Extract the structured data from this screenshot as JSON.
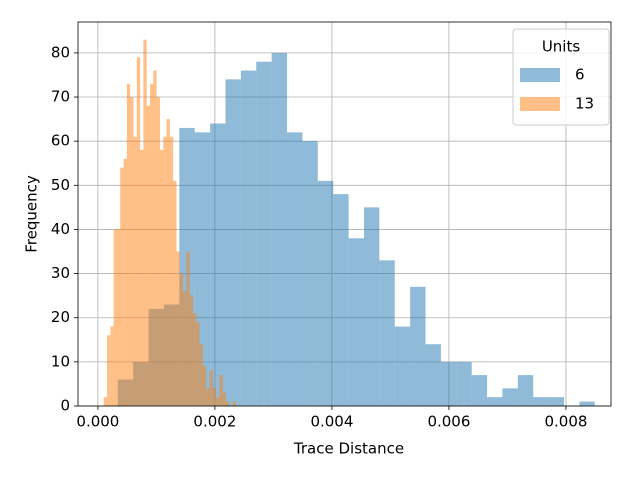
{
  "chart_data": {
    "type": "histogram",
    "xlabel": "Trace Distance",
    "ylabel": "Frequency",
    "xlim": [
      -0.00034,
      0.00877
    ],
    "ylim": [
      0,
      87
    ],
    "xticks": [
      {
        "value": 0,
        "label": "0.000"
      },
      0.002,
      0.004,
      0.006,
      0.008
    ],
    "yticks": [
      0,
      10,
      20,
      30,
      40,
      50,
      60,
      70,
      80
    ],
    "grid": true,
    "legend_title": "Units",
    "legend_loc": "upper right",
    "alpha": 0.5,
    "series": [
      {
        "name": "6",
        "color": "#1f77b4",
        "bins": [
          0.00034,
          0.000603,
          0.000866,
          0.001129,
          0.001392,
          0.001655,
          0.001918,
          0.002181,
          0.002444,
          0.002707,
          0.00297,
          0.003233,
          0.003496,
          0.003759,
          0.004022,
          0.004285,
          0.004548,
          0.004811,
          0.005074,
          0.005337,
          0.0056,
          0.005863,
          0.006126,
          0.006389,
          0.006652,
          0.006915,
          0.007178,
          0.007441,
          0.007704,
          0.007967,
          0.00823,
          0.008493
        ],
        "values": [
          6,
          10,
          22,
          23,
          63,
          62,
          64,
          74,
          76,
          78,
          80,
          62,
          60,
          51,
          48,
          38,
          45,
          33,
          18,
          27,
          14,
          10,
          10,
          7,
          2,
          4,
          7,
          2,
          2,
          0,
          1
        ]
      },
      {
        "name": "13",
        "color": "#ff7f0e",
        "bins": [
          0.0001,
          0.0001565,
          0.000213,
          0.0002695,
          0.000326,
          0.0003825,
          0.000439,
          0.0004955,
          0.000552,
          0.0006085,
          0.000665,
          0.0007215,
          0.000778,
          0.0008345,
          0.000891,
          0.0009475,
          0.001004,
          0.0010605,
          0.001117,
          0.0011735,
          0.00123,
          0.0012865,
          0.001343,
          0.0013995,
          0.001456,
          0.0015125,
          0.001569,
          0.0016255,
          0.001682,
          0.0017385,
          0.001795,
          0.0018515,
          0.001908,
          0.0019645,
          0.002021,
          0.0020775,
          0.002134,
          0.0021905,
          0.002247,
          0.0023035,
          0.00236
        ],
        "values": [
          2,
          16,
          18,
          40,
          40,
          54,
          56,
          73,
          70,
          61,
          79,
          58,
          83,
          68,
          73,
          76,
          70,
          58,
          61,
          65,
          61,
          51,
          35,
          30,
          26,
          35,
          25,
          21,
          19,
          14,
          9,
          4,
          8,
          4,
          2,
          7,
          3,
          1,
          0,
          1
        ]
      }
    ]
  }
}
